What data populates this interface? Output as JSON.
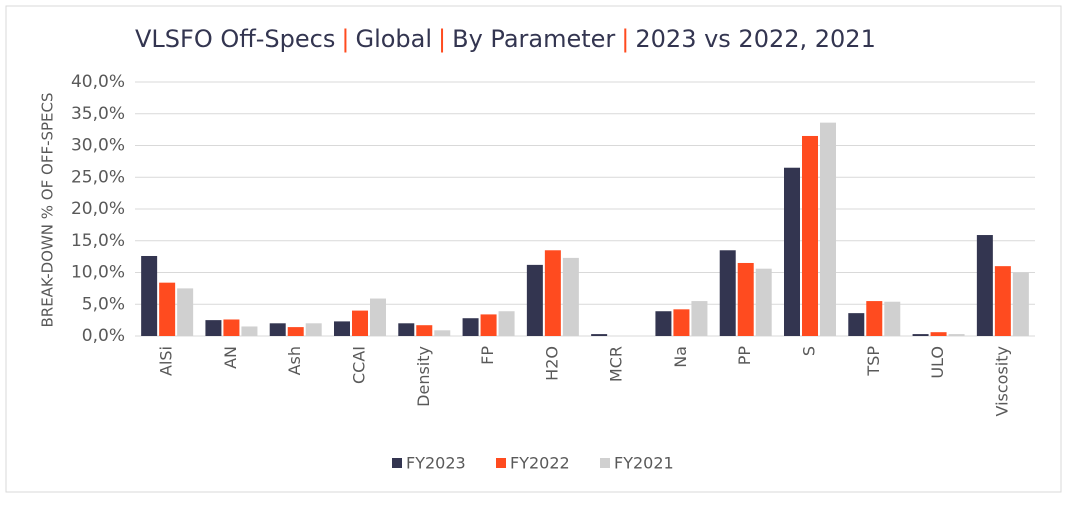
{
  "chart_data": {
    "type": "bar",
    "title_parts": [
      "VLSFO Off-Specs",
      "Global",
      "By Parameter",
      "2023 vs 2022, 2021"
    ],
    "title_separator": "|",
    "y_label": "BREAK-DOWN % OF OFF-SPECS",
    "categories": [
      "AlSi",
      "AN",
      "Ash",
      "CCAI",
      "Density",
      "FP",
      "H2O",
      "MCR",
      "Na",
      "PP",
      "S",
      "TSP",
      "ULO",
      "Viscosity"
    ],
    "series": [
      {
        "name": "FY2023",
        "color": "#333550",
        "values": [
          12.6,
          2.5,
          2.0,
          2.3,
          2.0,
          2.8,
          11.2,
          0.3,
          3.9,
          13.5,
          26.5,
          3.6,
          0.3,
          15.9
        ]
      },
      {
        "name": "FY2022",
        "color": "#ff4b1f",
        "values": [
          8.4,
          2.6,
          1.4,
          4.0,
          1.7,
          3.4,
          13.5,
          0,
          4.2,
          11.5,
          31.5,
          5.5,
          0.6,
          11.0
        ]
      },
      {
        "name": "FY2021",
        "color": "#d0d0d0",
        "values": [
          7.5,
          1.5,
          2.0,
          5.9,
          0.9,
          3.9,
          12.3,
          0,
          5.5,
          10.6,
          33.6,
          5.4,
          0.3,
          10.0
        ]
      }
    ],
    "ylim": [
      0,
      40
    ],
    "yticks": [
      {
        "value": 0,
        "label": "0,0%"
      },
      {
        "value": 5,
        "label": "5,0%"
      },
      {
        "value": 10,
        "label": "10,0%"
      },
      {
        "value": 15,
        "label": "15,0%"
      },
      {
        "value": 20,
        "label": "20,0%"
      },
      {
        "value": 25,
        "label": "25,0%"
      },
      {
        "value": 30,
        "label": "30,0%"
      },
      {
        "value": 35,
        "label": "35,0%"
      },
      {
        "value": 40,
        "label": "40,0%"
      }
    ],
    "grid": true,
    "legend": "bottom"
  }
}
